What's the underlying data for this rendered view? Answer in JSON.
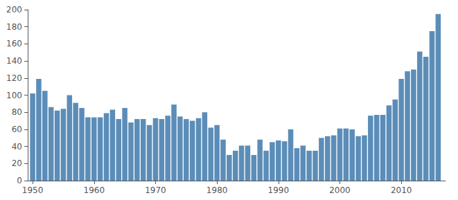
{
  "chart_data": {
    "type": "bar",
    "x": [
      1950,
      1951,
      1952,
      1953,
      1954,
      1955,
      1956,
      1957,
      1958,
      1959,
      1960,
      1961,
      1962,
      1963,
      1964,
      1965,
      1966,
      1967,
      1968,
      1969,
      1970,
      1971,
      1972,
      1973,
      1974,
      1975,
      1976,
      1977,
      1978,
      1979,
      1980,
      1981,
      1982,
      1983,
      1984,
      1985,
      1986,
      1987,
      1988,
      1989,
      1990,
      1991,
      1992,
      1993,
      1994,
      1995,
      1996,
      1997,
      1998,
      1999,
      2000,
      2001,
      2002,
      2003,
      2004,
      2005,
      2006,
      2007,
      2008,
      2009,
      2010,
      2011,
      2012,
      2013,
      2014,
      2015,
      2016
    ],
    "values": [
      102,
      119,
      105,
      86,
      82,
      84,
      100,
      91,
      85,
      74,
      74,
      74,
      79,
      83,
      72,
      85,
      68,
      72,
      72,
      65,
      73,
      72,
      76,
      89,
      75,
      72,
      70,
      73,
      80,
      62,
      65,
      48,
      30,
      35,
      41,
      41,
      30,
      48,
      35,
      45,
      47,
      46,
      60,
      38,
      41,
      35,
      35,
      50,
      52,
      53,
      61,
      61,
      60,
      52,
      53,
      76,
      77,
      77,
      88,
      95,
      119,
      128,
      130,
      151,
      145,
      175,
      195
    ],
    "color": "#5b8db8",
    "xlim": [
      1949.2,
      2017.2
    ],
    "xticks": [
      1950,
      1960,
      1970,
      1980,
      1990,
      2000,
      2010
    ],
    "ylim": [
      0,
      200
    ],
    "yticks": [
      0,
      20,
      40,
      60,
      80,
      100,
      120,
      140,
      160,
      180,
      200
    ],
    "grid": false
  }
}
